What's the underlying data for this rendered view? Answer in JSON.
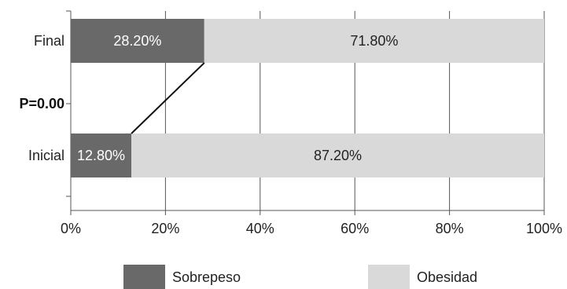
{
  "chart_data": {
    "type": "bar",
    "orientation": "horizontal",
    "stacked": true,
    "categories": [
      "Final",
      "Inicial"
    ],
    "series": [
      {
        "name": "Sobrepeso",
        "values": [
          28.2,
          12.8
        ],
        "labels": [
          "28.20%",
          "12.80%"
        ],
        "color": "#696969",
        "label_color": "#ffffff"
      },
      {
        "name": "Obesidad",
        "values": [
          71.8,
          87.2
        ],
        "labels": [
          "71.80%",
          "87.20%"
        ],
        "color": "#d9d9d9",
        "label_color": "#222222"
      }
    ],
    "x_ticks": [
      "0%",
      "20%",
      "40%",
      "60%",
      "80%",
      "100%"
    ],
    "xlim": [
      0,
      100
    ],
    "grid": true,
    "annotation": "P=0.00",
    "connector": "line joining the end of the Sobrepeso segment of Inicial and Final",
    "legend_position": "bottom",
    "title": "",
    "xlabel": "",
    "ylabel": ""
  }
}
